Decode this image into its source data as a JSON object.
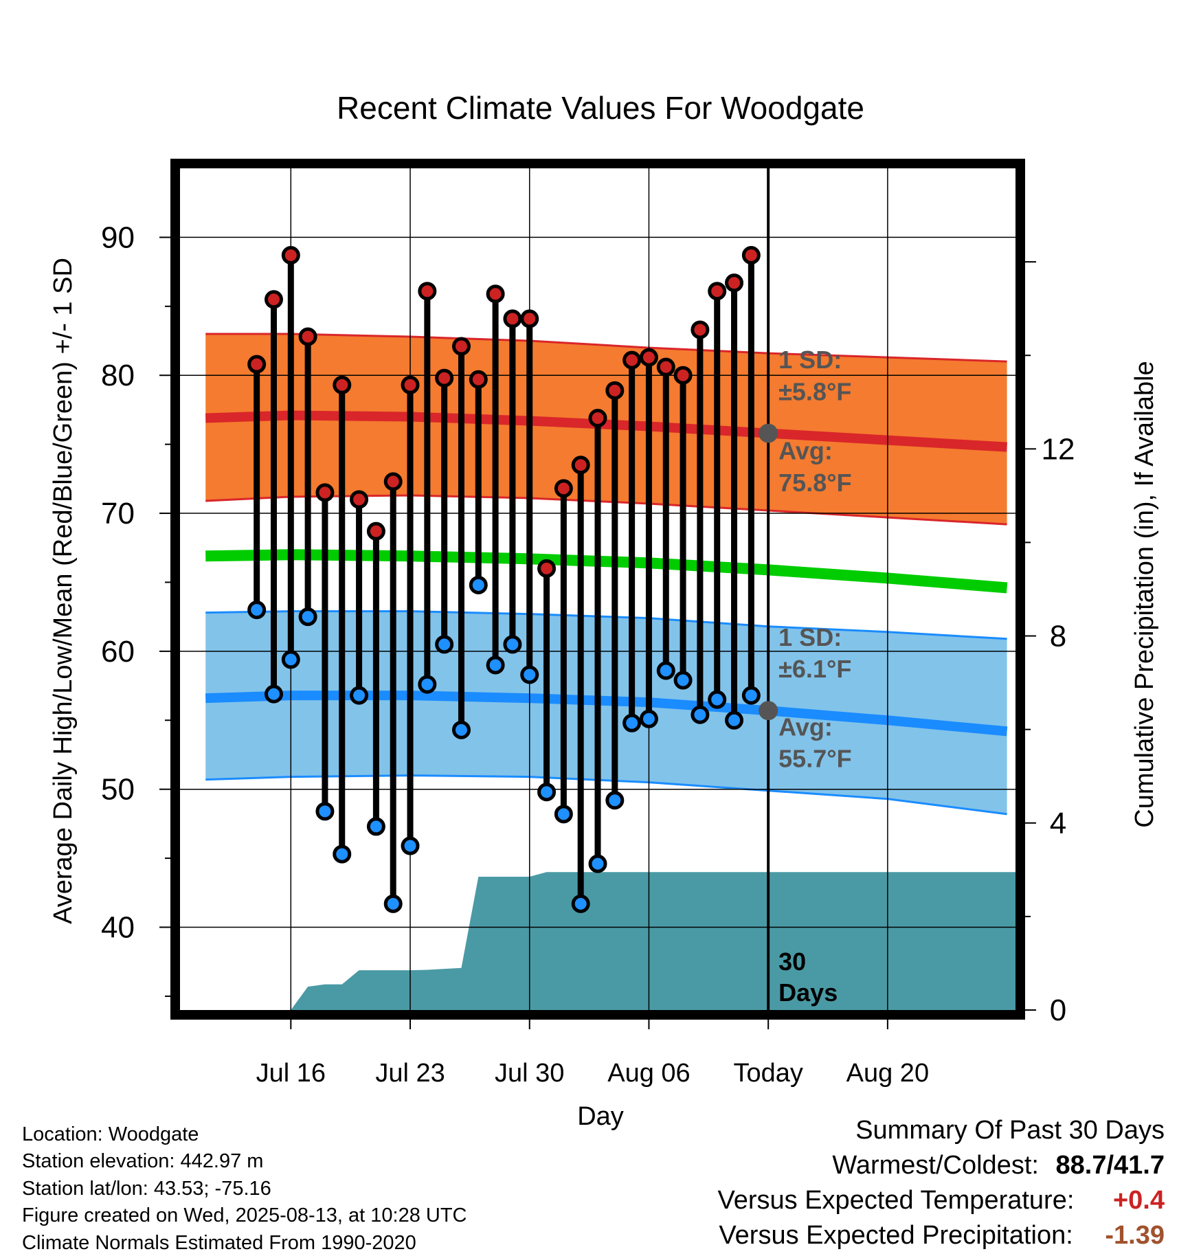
{
  "chart_data": {
    "type": "line",
    "title": "Recent Climate Values For Woodgate",
    "xlabel": "Day",
    "ylabel": "Average Daily High/Low/Mean (Red/Blue/Green) +/- 1 SD",
    "y2label": "Cumulative Precipitation (in), If Available",
    "ylim": [
      34,
      95
    ],
    "y_ticks": [
      40,
      50,
      60,
      70,
      80,
      90
    ],
    "y2lim": [
      0,
      18
    ],
    "y2_ticks": [
      0,
      4,
      8,
      12
    ],
    "x_range_days": [
      -34.5,
      14.5
    ],
    "x_ticks": [
      {
        "day": -28,
        "label": "Jul 16"
      },
      {
        "day": -21,
        "label": "Jul 23"
      },
      {
        "day": -14,
        "label": "Jul 30"
      },
      {
        "day": -7,
        "label": "Aug 06"
      },
      {
        "day": 0,
        "label": "Today"
      },
      {
        "day": 7,
        "label": "Aug 20"
      }
    ],
    "grid": true,
    "daily": {
      "days": [
        -30,
        -29,
        -28,
        -27,
        -26,
        -25,
        -24,
        -23,
        -22,
        -21,
        -20,
        -19,
        -18,
        -17,
        -16,
        -15,
        -14,
        -13,
        -12,
        -11,
        -10,
        -9,
        -8,
        -7,
        -6,
        -5,
        -4,
        -3,
        -2,
        -1
      ],
      "high": [
        80.8,
        85.5,
        88.7,
        82.8,
        71.5,
        79.3,
        71.0,
        68.7,
        72.3,
        79.3,
        86.1,
        79.8,
        82.1,
        79.7,
        85.9,
        84.1,
        84.1,
        66.0,
        71.8,
        73.5,
        76.9,
        78.9,
        81.1,
        81.3,
        80.6,
        80.0,
        83.3,
        86.1,
        86.7,
        88.7
      ],
      "low": [
        63.0,
        56.9,
        59.4,
        62.5,
        48.4,
        45.3,
        56.8,
        47.3,
        41.7,
        45.9,
        57.6,
        60.5,
        54.3,
        64.8,
        59.0,
        60.5,
        58.3,
        49.8,
        48.2,
        41.7,
        44.6,
        49.2,
        54.8,
        55.1,
        58.6,
        57.9,
        55.4,
        56.5,
        55.0,
        56.8
      ]
    },
    "normals": {
      "days": [
        -33,
        -28,
        -21,
        -14,
        -7,
        0,
        7,
        14
      ],
      "high_avg": [
        76.9,
        77.1,
        77.0,
        76.7,
        76.3,
        75.8,
        75.3,
        74.8
      ],
      "high_sd_upper": [
        83.0,
        83.0,
        82.8,
        82.5,
        82.0,
        81.6,
        81.3,
        81.0
      ],
      "high_sd_lower": [
        70.9,
        71.2,
        71.3,
        71.1,
        70.7,
        70.2,
        69.7,
        69.2
      ],
      "mean_avg": [
        66.9,
        67.0,
        66.9,
        66.7,
        66.4,
        65.9,
        65.3,
        64.6
      ],
      "low_avg": [
        56.6,
        56.8,
        56.8,
        56.6,
        56.3,
        55.7,
        55.0,
        54.2
      ],
      "low_sd_upper": [
        62.8,
        62.9,
        62.9,
        62.7,
        62.4,
        61.8,
        61.4,
        60.9
      ],
      "low_sd_lower": [
        50.7,
        50.9,
        51.0,
        50.9,
        50.5,
        49.9,
        49.3,
        48.2
      ]
    },
    "precipitation": {
      "days": [
        -28,
        -27,
        -26,
        -25,
        -24,
        -23,
        -22,
        -21,
        -20,
        -19,
        -18,
        -17,
        -16,
        -15,
        -14,
        -13,
        -12,
        0,
        14.5
      ],
      "cumulative": [
        0.0,
        0.5,
        0.55,
        0.55,
        0.85,
        0.85,
        0.85,
        0.85,
        0.86,
        0.88,
        0.9,
        2.85,
        2.85,
        2.85,
        2.85,
        2.95,
        2.95,
        2.95,
        2.95
      ]
    },
    "annotations": {
      "high_sd_label": "1 SD:",
      "high_sd_value": "±5.8°F",
      "high_avg_label": "Avg:",
      "high_avg_value": "75.8°F",
      "low_sd_label": "1 SD:",
      "low_sd_value": "±6.1°F",
      "low_avg_label": "Avg:",
      "low_avg_value": "55.7°F",
      "today_high_avg": 75.8,
      "today_low_avg": 55.7,
      "window_label_1": "30",
      "window_label_2": "Days"
    },
    "colors": {
      "high": "#cc2222",
      "high_band": "#f47b2f",
      "high_line": "#d9262a",
      "mean_line": "#00cc00",
      "low": "#1e90ff",
      "low_band": "#82c3ea",
      "low_line": "#1a8cff",
      "precip": "#4a9aa5",
      "today_marker": "#555555",
      "annotation": "#555555"
    }
  },
  "info": {
    "location": "Location: Woodgate",
    "elevation": "Station elevation: 442.97 m",
    "latlon": "Station lat/lon: 43.53; -75.16",
    "created": "Figure created on Wed, 2025-08-13, at 10:28 UTC",
    "normals": "Climate Normals Estimated From 1990-2020"
  },
  "summary": {
    "title": "Summary Of Past 30 Days",
    "warmest_label": "Warmest/Coldest:",
    "warmest_value": "88.7/41.7",
    "temp_label": "Versus Expected Temperature:",
    "temp_value": "+0.4",
    "temp_color": "#cc2222",
    "precip_label": "Versus Expected Precipitation:",
    "precip_value": "-1.39",
    "precip_color": "#a0522d"
  }
}
